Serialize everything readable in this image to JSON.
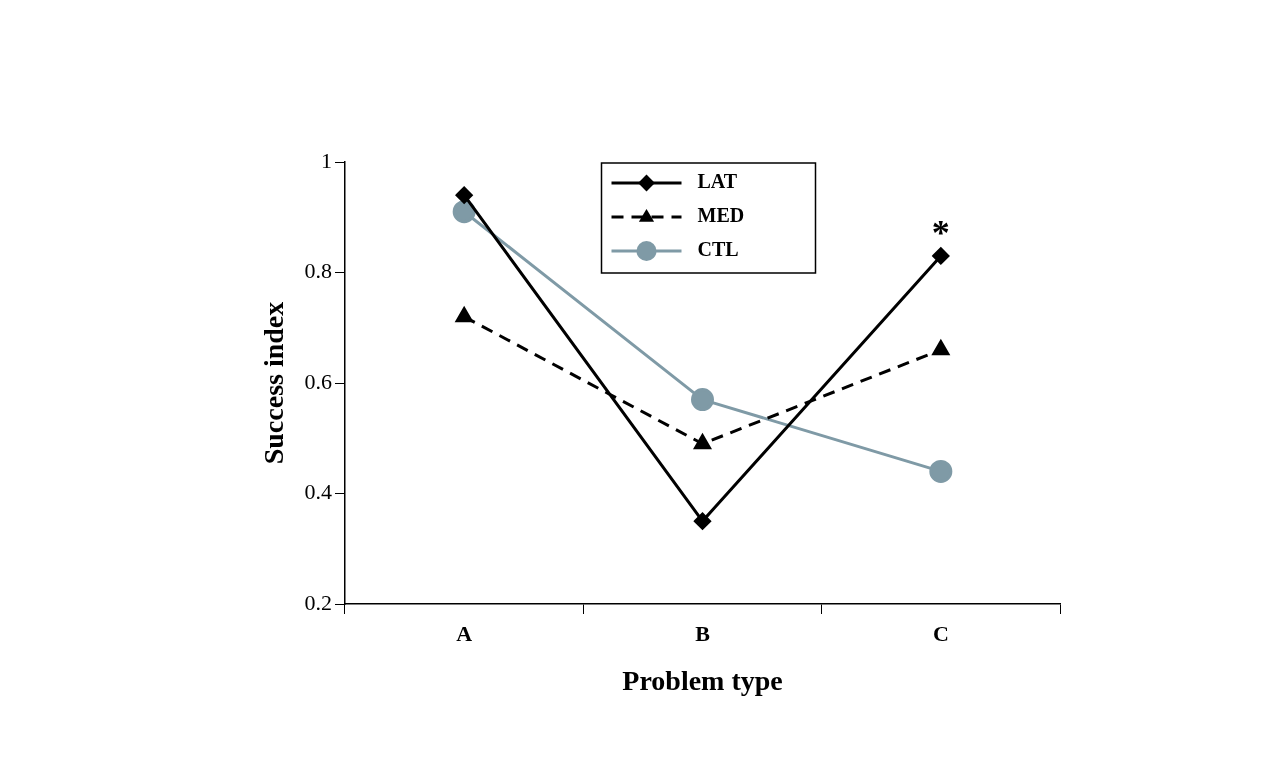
{
  "chart_data": {
    "type": "line",
    "xlabel": "Problem type",
    "ylabel": "Success index",
    "categories": [
      "A",
      "B",
      "C"
    ],
    "series": [
      {
        "name": "LAT",
        "color": "#000000",
        "values": [
          0.94,
          0.35,
          0.83
        ],
        "marker": "diamond",
        "line_style": "solid"
      },
      {
        "name": "MED",
        "color": "#000000",
        "values": [
          0.72,
          0.49,
          0.66
        ],
        "marker": "triangle",
        "line_style": "dashed"
      },
      {
        "name": "CTL",
        "color": "#7f9aa6",
        "values": [
          0.91,
          0.57,
          0.44
        ],
        "marker": "circle",
        "line_style": "solid"
      }
    ],
    "ylim": [
      0.2,
      1
    ],
    "yticks": [
      0.2,
      0.4,
      0.6,
      0.8,
      1
    ],
    "grid": false,
    "legend": "top",
    "annotations": [
      {
        "text": "*",
        "x": "C",
        "y": 0.83
      }
    ]
  }
}
